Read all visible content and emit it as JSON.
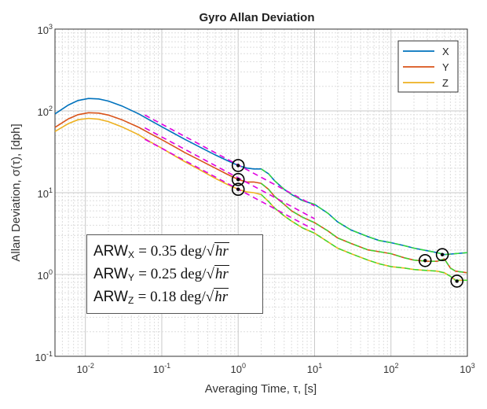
{
  "chart_data": {
    "type": "line",
    "title": "Gyro Allan Deviation",
    "xlabel": "Averaging Time, τ, [s]",
    "ylabel": "Allan Deviation, σ(τ), [dph]",
    "xscale": "log",
    "yscale": "log",
    "xlim": [
      0.004,
      1000
    ],
    "ylim": [
      0.1,
      1000
    ],
    "grid": true,
    "x_ticks": [
      {
        "base": "10",
        "exp": "-2",
        "value": 0.01
      },
      {
        "base": "10",
        "exp": "-1",
        "value": 0.1
      },
      {
        "base": "10",
        "exp": "0",
        "value": 1
      },
      {
        "base": "10",
        "exp": "1",
        "value": 10
      },
      {
        "base": "10",
        "exp": "2",
        "value": 100
      },
      {
        "base": "10",
        "exp": "3",
        "value": 1000
      }
    ],
    "y_ticks": [
      {
        "base": "10",
        "exp": "-1",
        "value": 0.1
      },
      {
        "base": "10",
        "exp": "0",
        "value": 1
      },
      {
        "base": "10",
        "exp": "1",
        "value": 10
      },
      {
        "base": "10",
        "exp": "2",
        "value": 100
      },
      {
        "base": "10",
        "exp": "3",
        "value": 1000
      }
    ],
    "legend_position": "top-right",
    "series": [
      {
        "name": "X",
        "color": "#0072BD",
        "x": [
          0.004,
          0.006,
          0.008,
          0.011,
          0.015,
          0.02,
          0.03,
          0.05,
          0.07,
          0.1,
          0.15,
          0.2,
          0.3,
          0.5,
          0.7,
          1.0,
          1.3,
          1.6,
          2.0,
          2.5,
          3.0,
          4.0,
          5.0,
          7.0,
          10,
          15,
          20,
          30,
          50,
          70,
          100,
          150,
          200,
          300,
          400,
          500,
          700,
          1000
        ],
        "y": [
          92,
          118,
          134,
          142,
          140,
          132,
          115,
          92,
          77,
          64,
          52,
          45,
          37,
          29,
          25,
          21.5,
          20,
          19.5,
          19.5,
          17,
          14,
          11,
          9.5,
          8.0,
          7.2,
          5.6,
          4.4,
          3.5,
          2.9,
          2.6,
          2.45,
          2.25,
          2.1,
          1.95,
          1.85,
          1.75,
          1.8,
          1.85
        ]
      },
      {
        "name": "Y",
        "color": "#D95319",
        "x": [
          0.004,
          0.006,
          0.008,
          0.011,
          0.015,
          0.02,
          0.03,
          0.05,
          0.07,
          0.1,
          0.15,
          0.2,
          0.3,
          0.5,
          0.7,
          1.0,
          1.3,
          1.6,
          2.0,
          2.5,
          3.0,
          4.0,
          5.0,
          7.0,
          10,
          15,
          20,
          30,
          50,
          70,
          100,
          150,
          200,
          300,
          400,
          500,
          600,
          700,
          1000
        ],
        "y": [
          63,
          80,
          90,
          95,
          94,
          89,
          78,
          63,
          53,
          44.5,
          36,
          31,
          25.5,
          20,
          17,
          14.5,
          13.5,
          13.5,
          13,
          11,
          9.0,
          7.2,
          6.0,
          5.0,
          4.3,
          3.4,
          2.8,
          2.4,
          2.0,
          1.9,
          1.8,
          1.6,
          1.5,
          1.45,
          1.45,
          1.55,
          1.2,
          1.1,
          1.05
        ]
      },
      {
        "name": "Z",
        "color": "#EDB120",
        "x": [
          0.004,
          0.006,
          0.008,
          0.011,
          0.015,
          0.02,
          0.03,
          0.05,
          0.07,
          0.1,
          0.15,
          0.2,
          0.3,
          0.5,
          0.7,
          1.0,
          1.3,
          1.6,
          2.0,
          2.5,
          3.0,
          4.0,
          5.0,
          7.0,
          10,
          15,
          20,
          30,
          50,
          70,
          100,
          150,
          200,
          300,
          400,
          500,
          600,
          700,
          1000
        ],
        "y": [
          56,
          70,
          78,
          81,
          79,
          74,
          64,
          51,
          42,
          35,
          28,
          24,
          19.5,
          15,
          12.8,
          11.0,
          10.2,
          10.0,
          9.5,
          7.8,
          6.5,
          5.2,
          4.5,
          3.7,
          3.2,
          2.5,
          2.1,
          1.8,
          1.5,
          1.35,
          1.25,
          1.2,
          1.15,
          1.12,
          1.1,
          1.05,
          0.95,
          0.85,
          0.85
        ]
      }
    ],
    "fit_lines": {
      "color": "#E000E0",
      "segments": [
        {
          "x": [
            0.06,
            10
          ],
          "y": [
            89,
            6.9
          ]
        },
        {
          "x": [
            0.06,
            10
          ],
          "y": [
            62,
            4.8
          ]
        },
        {
          "x": [
            0.06,
            10
          ],
          "y": [
            45,
            3.5
          ]
        }
      ]
    },
    "noise_overlay": {
      "color": "#33DD33",
      "segments": [
        {
          "series": "X",
          "from": 2
        },
        {
          "series": "Y",
          "from": 2
        },
        {
          "series": "Z",
          "from": 2
        }
      ]
    },
    "markers": [
      {
        "x": 1.0,
        "y": 21.5
      },
      {
        "x": 1.0,
        "y": 14.5
      },
      {
        "x": 1.0,
        "y": 11.0
      },
      {
        "x": 280,
        "y": 1.48
      },
      {
        "x": 470,
        "y": 1.75
      },
      {
        "x": 730,
        "y": 0.83
      }
    ],
    "annotations": [
      {
        "prefix": "ARW",
        "axis": "X",
        "value": "= 0.35 deg/",
        "radicand": "hr"
      },
      {
        "prefix": "ARW",
        "axis": "Y",
        "value": "= 0.25 deg/",
        "radicand": "hr"
      },
      {
        "prefix": "ARW",
        "axis": "Z",
        "value": "= 0.18 deg/",
        "radicand": "hr"
      }
    ]
  }
}
